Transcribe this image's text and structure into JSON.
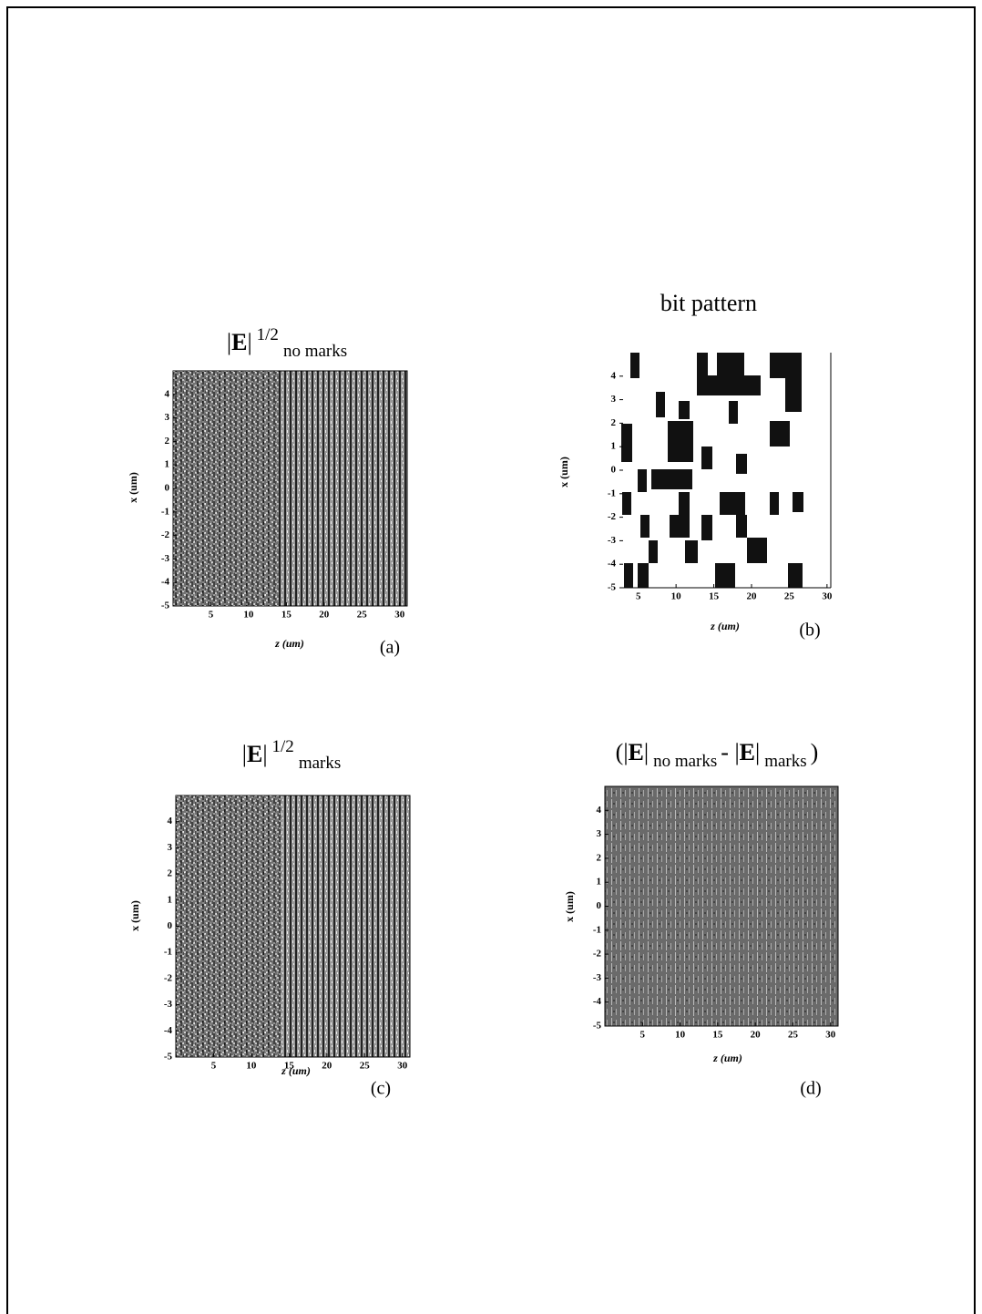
{
  "chart_data": [
    {
      "type": "heatmap",
      "title": [
        {
          "text": "|"
        },
        {
          "text": "E",
          "style": "bold"
        },
        {
          "text": "|"
        },
        {
          "text": "1/2",
          "style": "sup"
        },
        {
          "text": "no marks",
          "style": "sub"
        }
      ],
      "x_label": "z (um)",
      "y_label": "x (um)",
      "panel_label": "(a)",
      "xlim": [
        0,
        31
      ],
      "ylim": [
        -5,
        5
      ],
      "xticks": [
        5,
        10,
        15,
        20,
        25,
        30
      ],
      "yticks": [
        -5,
        -4,
        -3,
        -2,
        -1,
        0,
        1,
        2,
        3,
        4
      ]
    },
    {
      "type": "bitmap",
      "title": [
        {
          "text": "bit pattern"
        }
      ],
      "x_label": "z (um)",
      "y_label": "x (um)",
      "panel_label": "(b)",
      "xlim": [
        2.5,
        30.5
      ],
      "ylim": [
        -5,
        5
      ],
      "xticks": [
        5,
        10,
        15,
        20,
        25,
        30
      ],
      "yticks": [
        -5,
        -4,
        -3,
        -2,
        -1,
        0,
        1,
        2,
        3,
        4
      ]
    },
    {
      "type": "heatmap",
      "title": [
        {
          "text": "|"
        },
        {
          "text": "E",
          "style": "bold"
        },
        {
          "text": "|"
        },
        {
          "text": "1/2",
          "style": "sup"
        },
        {
          "text": "marks",
          "style": "sub"
        }
      ],
      "x_label": "z (um)",
      "y_label": "x (um)",
      "panel_label": "(c)",
      "xlim": [
        0,
        31
      ],
      "ylim": [
        -5,
        5
      ],
      "xticks": [
        5,
        10,
        15,
        20,
        25,
        30
      ],
      "yticks": [
        -5,
        -4,
        -3,
        -2,
        -1,
        0,
        1,
        2,
        3,
        4
      ]
    },
    {
      "type": "difference",
      "title": [
        {
          "text": "(|"
        },
        {
          "text": "E",
          "style": "bold"
        },
        {
          "text": "|"
        },
        {
          "text": "no marks",
          "style": "sub"
        },
        {
          "text": "- |"
        },
        {
          "text": "E",
          "style": "bold"
        },
        {
          "text": "|"
        },
        {
          "text": "marks",
          "style": "sub"
        },
        {
          "text": ")"
        }
      ],
      "x_label": "z (um)",
      "y_label": "x (um)",
      "panel_label": "(d)",
      "xlim": [
        0,
        31
      ],
      "ylim": [
        -5,
        5
      ],
      "xticks": [
        5,
        10,
        15,
        20,
        25,
        30
      ],
      "yticks": [
        -5,
        -4,
        -3,
        -2,
        -1,
        0,
        1,
        2,
        3,
        4
      ]
    }
  ]
}
